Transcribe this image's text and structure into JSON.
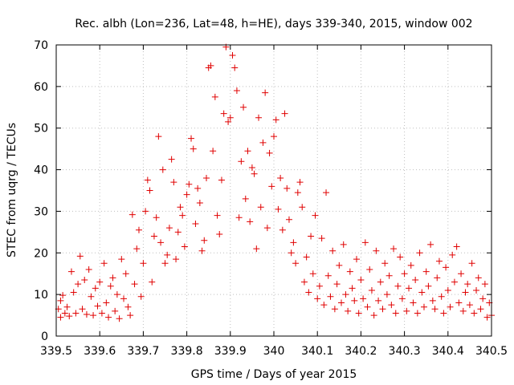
{
  "chart_data": {
    "type": "scatter",
    "title": "Rec. albh (Lon=236, Lat=48, h=HE), days 339-340, 2015, window 002",
    "xlabel": "GPS time / Days of year 2015",
    "ylabel": "STEC from uqrg / TECUs",
    "xlim": [
      339.5,
      340.5
    ],
    "ylim": [
      0,
      70
    ],
    "grid": true,
    "marker": "+",
    "color": "#e00000",
    "x_ticks": [
      "339.5",
      "339.6",
      "339.7",
      "339.8",
      "339.9",
      "340",
      "340.1",
      "340.2",
      "340.3",
      "340.4",
      "340.5"
    ],
    "x_tick_values": [
      339.5,
      339.6,
      339.7,
      339.8,
      339.9,
      340.0,
      340.1,
      340.2,
      340.3,
      340.4,
      340.5
    ],
    "y_ticks": [
      "0",
      "10",
      "20",
      "30",
      "40",
      "50",
      "60",
      "70"
    ],
    "y_tick_values": [
      0,
      10,
      20,
      30,
      40,
      50,
      60,
      70
    ],
    "points": [
      [
        339.505,
        6.5
      ],
      [
        339.51,
        8.5
      ],
      [
        339.51,
        4.5
      ],
      [
        339.515,
        9.8
      ],
      [
        339.52,
        5.5
      ],
      [
        339.525,
        7.0
      ],
      [
        339.53,
        4.8
      ],
      [
        339.535,
        15.5
      ],
      [
        339.54,
        10.5
      ],
      [
        339.545,
        5.5
      ],
      [
        339.55,
        12.5
      ],
      [
        339.555,
        19.2
      ],
      [
        339.56,
        6.5
      ],
      [
        339.565,
        13.5
      ],
      [
        339.57,
        5.2
      ],
      [
        339.575,
        16.0
      ],
      [
        339.58,
        9.5
      ],
      [
        339.585,
        5.0
      ],
      [
        339.59,
        11.5
      ],
      [
        339.595,
        7.2
      ],
      [
        339.6,
        13.0
      ],
      [
        339.605,
        5.5
      ],
      [
        339.61,
        17.5
      ],
      [
        339.615,
        8.0
      ],
      [
        339.62,
        4.5
      ],
      [
        339.625,
        12.0
      ],
      [
        339.63,
        14.0
      ],
      [
        339.635,
        6.0
      ],
      [
        339.64,
        10.0
      ],
      [
        339.645,
        4.2
      ],
      [
        339.65,
        18.5
      ],
      [
        339.655,
        9.0
      ],
      [
        339.66,
        15.0
      ],
      [
        339.665,
        7.0
      ],
      [
        339.67,
        5.0
      ],
      [
        339.675,
        29.2
      ],
      [
        339.68,
        12.5
      ],
      [
        339.685,
        21.0
      ],
      [
        339.69,
        25.5
      ],
      [
        339.695,
        9.5
      ],
      [
        339.7,
        17.5
      ],
      [
        339.705,
        30.0
      ],
      [
        339.71,
        37.5
      ],
      [
        339.715,
        35.0
      ],
      [
        339.72,
        13.0
      ],
      [
        339.725,
        24.0
      ],
      [
        339.73,
        28.5
      ],
      [
        339.735,
        48.0
      ],
      [
        339.74,
        22.5
      ],
      [
        339.745,
        40.0
      ],
      [
        339.75,
        17.5
      ],
      [
        339.755,
        19.5
      ],
      [
        339.76,
        26.0
      ],
      [
        339.765,
        42.5
      ],
      [
        339.77,
        37.0
      ],
      [
        339.775,
        18.5
      ],
      [
        339.78,
        25.0
      ],
      [
        339.785,
        31.0
      ],
      [
        339.79,
        29.0
      ],
      [
        339.795,
        21.5
      ],
      [
        339.8,
        34.0
      ],
      [
        339.805,
        36.5
      ],
      [
        339.81,
        47.5
      ],
      [
        339.815,
        45.0
      ],
      [
        339.82,
        27.0
      ],
      [
        339.825,
        35.5
      ],
      [
        339.83,
        32.0
      ],
      [
        339.835,
        20.5
      ],
      [
        339.84,
        23.0
      ],
      [
        339.845,
        38.0
      ],
      [
        339.85,
        64.5
      ],
      [
        339.855,
        65.0
      ],
      [
        339.86,
        44.5
      ],
      [
        339.865,
        57.5
      ],
      [
        339.87,
        29.0
      ],
      [
        339.875,
        24.5
      ],
      [
        339.88,
        37.5
      ],
      [
        339.885,
        53.5
      ],
      [
        339.89,
        69.5
      ],
      [
        339.895,
        51.5
      ],
      [
        339.9,
        52.5
      ],
      [
        339.905,
        67.5
      ],
      [
        339.91,
        64.5
      ],
      [
        339.915,
        59.0
      ],
      [
        339.92,
        28.5
      ],
      [
        339.925,
        42.0
      ],
      [
        339.93,
        55.0
      ],
      [
        339.935,
        33.0
      ],
      [
        339.94,
        44.5
      ],
      [
        339.945,
        27.5
      ],
      [
        339.95,
        40.5
      ],
      [
        339.955,
        39.0
      ],
      [
        339.96,
        21.0
      ],
      [
        339.965,
        52.5
      ],
      [
        339.97,
        31.0
      ],
      [
        339.975,
        46.5
      ],
      [
        339.98,
        58.5
      ],
      [
        339.985,
        26.0
      ],
      [
        339.99,
        44.0
      ],
      [
        339.995,
        36.0
      ],
      [
        340.0,
        48.0
      ],
      [
        340.005,
        52.0
      ],
      [
        340.01,
        30.5
      ],
      [
        340.015,
        38.0
      ],
      [
        340.02,
        25.5
      ],
      [
        340.025,
        53.5
      ],
      [
        340.03,
        35.5
      ],
      [
        340.035,
        28.0
      ],
      [
        340.04,
        20.0
      ],
      [
        340.045,
        22.5
      ],
      [
        340.05,
        17.5
      ],
      [
        340.055,
        34.5
      ],
      [
        340.06,
        37.0
      ],
      [
        340.065,
        31.0
      ],
      [
        340.07,
        13.0
      ],
      [
        340.075,
        19.0
      ],
      [
        340.08,
        10.5
      ],
      [
        340.085,
        24.0
      ],
      [
        340.09,
        15.0
      ],
      [
        340.095,
        29.0
      ],
      [
        340.1,
        9.0
      ],
      [
        340.105,
        12.0
      ],
      [
        340.11,
        23.5
      ],
      [
        340.115,
        7.5
      ],
      [
        340.12,
        34.5
      ],
      [
        340.125,
        14.5
      ],
      [
        340.13,
        9.5
      ],
      [
        340.135,
        20.5
      ],
      [
        340.14,
        6.5
      ],
      [
        340.145,
        12.5
      ],
      [
        340.15,
        17.0
      ],
      [
        340.155,
        8.0
      ],
      [
        340.16,
        22.0
      ],
      [
        340.165,
        10.0
      ],
      [
        340.17,
        6.0
      ],
      [
        340.175,
        15.5
      ],
      [
        340.18,
        11.5
      ],
      [
        340.185,
        8.5
      ],
      [
        340.19,
        18.5
      ],
      [
        340.195,
        5.5
      ],
      [
        340.2,
        13.5
      ],
      [
        340.205,
        9.0
      ],
      [
        340.21,
        22.5
      ],
      [
        340.215,
        7.0
      ],
      [
        340.22,
        16.0
      ],
      [
        340.225,
        11.0
      ],
      [
        340.23,
        5.0
      ],
      [
        340.235,
        20.5
      ],
      [
        340.24,
        8.5
      ],
      [
        340.245,
        13.0
      ],
      [
        340.25,
        6.5
      ],
      [
        340.255,
        17.5
      ],
      [
        340.26,
        10.0
      ],
      [
        340.265,
        14.5
      ],
      [
        340.27,
        7.5
      ],
      [
        340.275,
        21.0
      ],
      [
        340.28,
        5.5
      ],
      [
        340.285,
        12.0
      ],
      [
        340.29,
        19.0
      ],
      [
        340.295,
        9.0
      ],
      [
        340.3,
        15.0
      ],
      [
        340.305,
        6.0
      ],
      [
        340.31,
        11.5
      ],
      [
        340.315,
        17.0
      ],
      [
        340.32,
        8.0
      ],
      [
        340.325,
        13.5
      ],
      [
        340.33,
        5.5
      ],
      [
        340.335,
        20.0
      ],
      [
        340.34,
        10.5
      ],
      [
        340.345,
        7.0
      ],
      [
        340.35,
        15.5
      ],
      [
        340.355,
        12.0
      ],
      [
        340.36,
        22.0
      ],
      [
        340.365,
        8.5
      ],
      [
        340.37,
        6.5
      ],
      [
        340.375,
        14.0
      ],
      [
        340.38,
        18.0
      ],
      [
        340.385,
        9.5
      ],
      [
        340.39,
        5.5
      ],
      [
        340.395,
        16.5
      ],
      [
        340.4,
        11.0
      ],
      [
        340.405,
        7.0
      ],
      [
        340.41,
        19.5
      ],
      [
        340.415,
        13.0
      ],
      [
        340.42,
        21.5
      ],
      [
        340.425,
        8.0
      ],
      [
        340.43,
        15.0
      ],
      [
        340.435,
        6.0
      ],
      [
        340.44,
        10.5
      ],
      [
        340.445,
        12.5
      ],
      [
        340.45,
        7.5
      ],
      [
        340.455,
        17.5
      ],
      [
        340.46,
        5.5
      ],
      [
        340.465,
        11.0
      ],
      [
        340.47,
        14.0
      ],
      [
        340.475,
        6.5
      ],
      [
        340.48,
        9.0
      ],
      [
        340.485,
        12.5
      ],
      [
        340.49,
        4.5
      ],
      [
        340.495,
        8.0
      ],
      [
        340.5,
        5.0
      ]
    ]
  }
}
